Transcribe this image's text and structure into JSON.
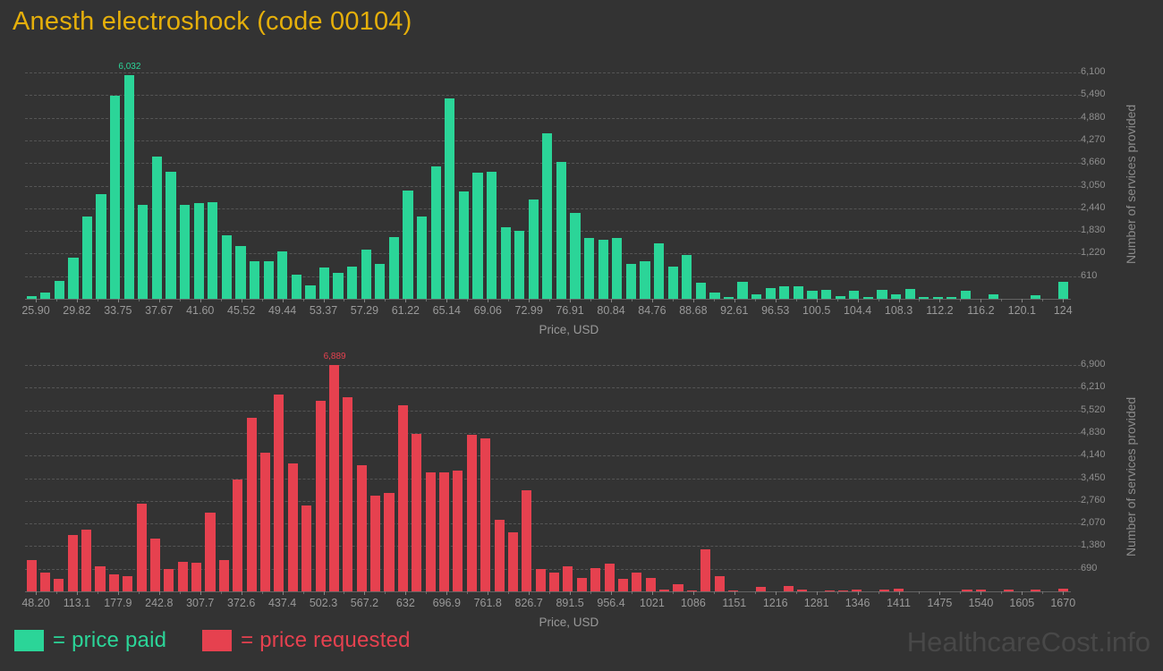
{
  "title": "Anesth electroshock (code 00104)",
  "watermark": "HealthcareCost.info",
  "legend": {
    "paid_label": "= price paid",
    "requested_label": "= price requested"
  },
  "colors": {
    "background": "#333333",
    "title": "#e5af0b",
    "price_paid": "#2bd598",
    "price_requested": "#e6414f",
    "grid": "#5c5c5c",
    "axis_text": "#999999",
    "watermark": "#484848"
  },
  "chart_data": [
    {
      "type": "bar",
      "series_name": "price paid",
      "bar_color": "#2bd598",
      "xlabel": "Price, USD",
      "ylabel": "Number of services provided",
      "y_max": 6100,
      "y_step": 610,
      "grid": true,
      "legend_position": "bottom",
      "peak_label": "6,032",
      "bin_width_usd": 1.31,
      "y_tick_labels": [
        "610",
        "1,220",
        "1,830",
        "2,440",
        "3,050",
        "3,660",
        "4,270",
        "4,880",
        "5,490",
        "6,100"
      ],
      "x_tick_labels": [
        "25.90",
        "29.82",
        "33.75",
        "37.67",
        "41.60",
        "45.52",
        "49.44",
        "53.37",
        "57.29",
        "61.22",
        "65.14",
        "69.06",
        "72.99",
        "76.91",
        "80.84",
        "84.76",
        "88.68",
        "92.61",
        "96.53",
        "100.5",
        "104.4",
        "108.3",
        "112.2",
        "116.2",
        "120.1",
        "124"
      ],
      "values": [
        80,
        160,
        490,
        1100,
        2210,
        2820,
        5470,
        6032,
        2530,
        3840,
        3430,
        2530,
        2570,
        2610,
        1720,
        1430,
        1020,
        1020,
        1270,
        650,
        370,
        840,
        710,
        870,
        1330,
        940,
        1660,
        2920,
        2220,
        3580,
        5400,
        2900,
        3410,
        3430,
        1920,
        1840,
        2670,
        4470,
        3700,
        2310,
        1650,
        1580,
        1630,
        940,
        1020,
        1490,
        870,
        1180,
        430,
        160,
        60,
        450,
        120,
        300,
        340,
        340,
        220,
        245,
        80,
        220,
        40,
        250,
        130,
        270,
        40,
        40,
        40,
        220,
        0,
        110,
        0,
        0,
        90,
        0,
        450
      ]
    },
    {
      "type": "bar",
      "series_name": "price requested",
      "bar_color": "#e6414f",
      "xlabel": "Price, USD",
      "ylabel": "Number of services provided",
      "y_max": 6900,
      "y_step": 690,
      "grid": true,
      "legend_position": "bottom",
      "peak_label": "6,889",
      "bin_width_usd": 21.6,
      "y_tick_labels": [
        "690",
        "1,380",
        "2,070",
        "2,760",
        "3,450",
        "4,140",
        "4,830",
        "5,520",
        "6,210",
        "6,900"
      ],
      "x_tick_labels": [
        "48.20",
        "113.1",
        "177.9",
        "242.8",
        "307.7",
        "372.6",
        "437.4",
        "502.3",
        "567.2",
        "632",
        "696.9",
        "761.8",
        "826.7",
        "891.5",
        "956.4",
        "1021",
        "1086",
        "1151",
        "1216",
        "1281",
        "1346",
        "1411",
        "1475",
        "1540",
        "1605",
        "1670"
      ],
      "values": [
        950,
        580,
        390,
        1730,
        1890,
        770,
        530,
        470,
        2680,
        1610,
        670,
        910,
        860,
        2400,
        950,
        3410,
        5300,
        4230,
        6000,
        3900,
        2630,
        5800,
        6889,
        5930,
        3850,
        2910,
        2990,
        5680,
        4810,
        3640,
        3640,
        3690,
        4780,
        4670,
        2170,
        1790,
        3080,
        670,
        560,
        770,
        420,
        720,
        840,
        390,
        580,
        420,
        60,
        210,
        30,
        1290,
        470,
        30,
        0,
        140,
        0,
        160,
        60,
        0,
        30,
        30,
        60,
        0,
        60,
        90,
        0,
        0,
        0,
        0,
        60,
        50,
        0,
        60,
        0,
        60,
        0,
        70
      ]
    }
  ]
}
